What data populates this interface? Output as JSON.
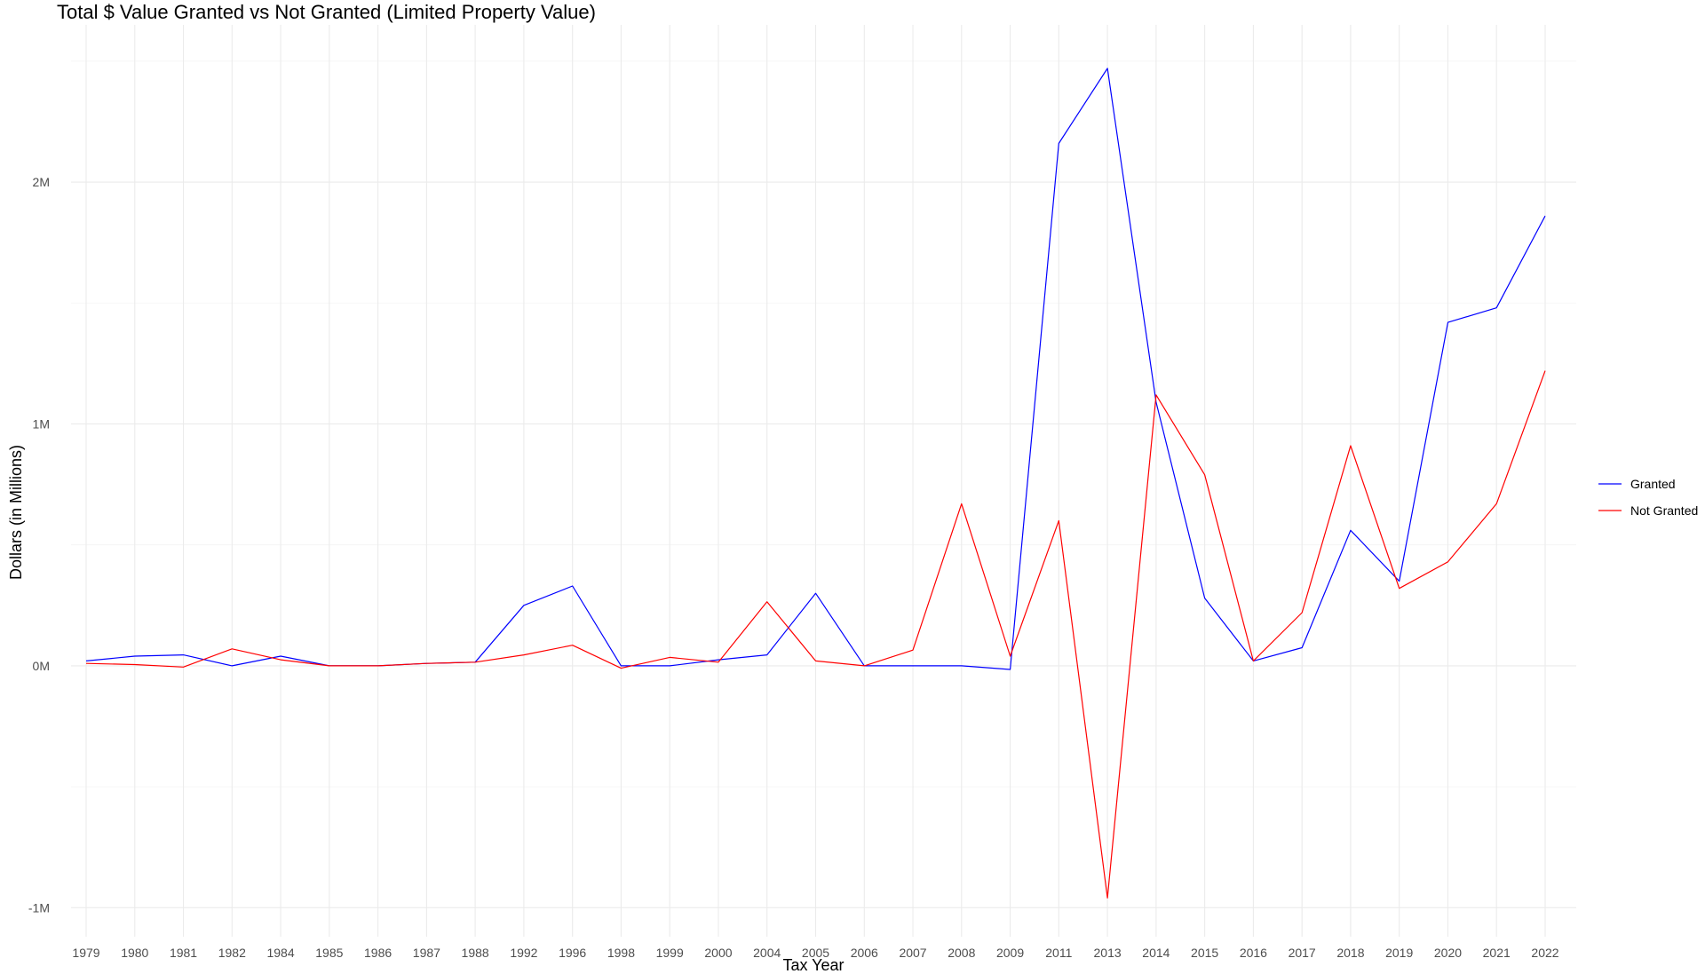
{
  "chart_data": {
    "type": "line",
    "title": "Total $ Value Granted vs Not Granted (Limited Property Value)",
    "xlabel": "Tax Year",
    "ylabel": "Dollars (in Millions)",
    "categories": [
      "1979",
      "1980",
      "1981",
      "1982",
      "1984",
      "1985",
      "1986",
      "1987",
      "1988",
      "1992",
      "1996",
      "1998",
      "1999",
      "2000",
      "2004",
      "2005",
      "2006",
      "2007",
      "2008",
      "2009",
      "2011",
      "2013",
      "2014",
      "2015",
      "2016",
      "2017",
      "2018",
      "2019",
      "2020",
      "2021",
      "2022"
    ],
    "ylim": [
      -1.12,
      2.65
    ],
    "y_ticks": [
      {
        "value": -1,
        "label": "-1M"
      },
      {
        "value": 0,
        "label": "0M"
      },
      {
        "value": 1,
        "label": "1M"
      },
      {
        "value": 2,
        "label": "2M"
      }
    ],
    "grid": true,
    "legend_position": "right",
    "series": [
      {
        "name": "Granted",
        "color": "#0000ff",
        "values": [
          0.02,
          0.04,
          0.045,
          0.0,
          0.04,
          0.0,
          0.0,
          0.01,
          0.015,
          0.25,
          0.33,
          0.0,
          0.0,
          0.025,
          0.045,
          0.3,
          0.0,
          0.0,
          0.0,
          -0.015,
          2.16,
          2.47,
          1.09,
          0.28,
          0.02,
          0.075,
          0.56,
          0.35,
          1.42,
          1.48,
          1.86
        ]
      },
      {
        "name": "Not Granted",
        "color": "#ff0000",
        "values": [
          0.01,
          0.005,
          -0.005,
          0.07,
          0.025,
          0.0,
          0.0,
          0.01,
          0.015,
          0.045,
          0.085,
          -0.01,
          0.035,
          0.015,
          0.265,
          0.02,
          0.0,
          0.065,
          0.67,
          0.04,
          0.6,
          -0.96,
          1.12,
          0.79,
          0.02,
          0.22,
          0.91,
          0.32,
          0.43,
          0.67,
          1.22
        ]
      }
    ]
  }
}
